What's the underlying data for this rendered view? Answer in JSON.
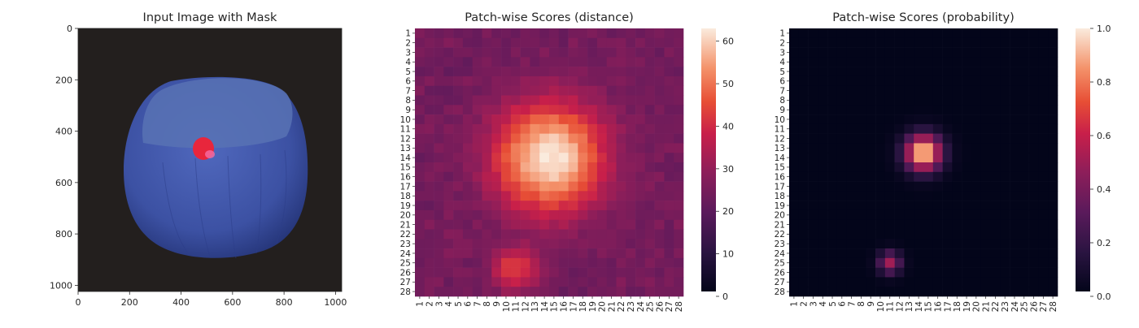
{
  "chart_data": [
    {
      "type": "image",
      "title": "Input Image with Mask",
      "xlim": [
        0,
        1024
      ],
      "ylim": [
        1024,
        0
      ],
      "xticks": [
        "0",
        "200",
        "400",
        "600",
        "800",
        "1000"
      ],
      "yticks": [
        "0",
        "200",
        "400",
        "600",
        "800",
        "1000"
      ],
      "object": "hazelnut",
      "mask_color": "#e8263c",
      "object_color": "#3f54a8",
      "background_color": "#231f1e"
    },
    {
      "type": "heatmap",
      "title": "Patch-wise Scores (distance)",
      "rows": 28,
      "cols": 28,
      "xticks": [
        "1",
        "2",
        "3",
        "4",
        "5",
        "6",
        "7",
        "8",
        "9",
        "10",
        "11",
        "12",
        "13",
        "14",
        "15",
        "16",
        "17",
        "18",
        "19",
        "20",
        "21",
        "22",
        "23",
        "24",
        "25",
        "26",
        "27",
        "28"
      ],
      "yticks": [
        "1",
        "2",
        "3",
        "4",
        "5",
        "6",
        "7",
        "8",
        "9",
        "10",
        "11",
        "12",
        "13",
        "14",
        "15",
        "16",
        "17",
        "18",
        "19",
        "20",
        "21",
        "22",
        "23",
        "24",
        "25",
        "26",
        "27",
        "28"
      ],
      "vmin": 0,
      "vmax": 63,
      "colorbar_ticks": [
        "0",
        "10",
        "20",
        "30",
        "40",
        "50",
        "60"
      ],
      "colormap": "rocket",
      "hotspots": [
        {
          "row": 14,
          "col": 14.5,
          "value": 63
        },
        {
          "row": 25.5,
          "col": 11,
          "value": 43
        }
      ],
      "baseline_value": 22
    },
    {
      "type": "heatmap",
      "title": "Patch-wise Scores (probability)",
      "rows": 28,
      "cols": 28,
      "xticks": [
        "1",
        "2",
        "3",
        "4",
        "5",
        "6",
        "7",
        "8",
        "9",
        "10",
        "11",
        "12",
        "13",
        "14",
        "15",
        "16",
        "17",
        "18",
        "19",
        "20",
        "21",
        "22",
        "23",
        "24",
        "25",
        "26",
        "27",
        "28"
      ],
      "yticks": [
        "1",
        "2",
        "3",
        "4",
        "5",
        "6",
        "7",
        "8",
        "9",
        "10",
        "11",
        "12",
        "13",
        "14",
        "15",
        "16",
        "17",
        "18",
        "19",
        "20",
        "21",
        "22",
        "23",
        "24",
        "25",
        "26",
        "27",
        "28"
      ],
      "vmin": 0.0,
      "vmax": 1.0,
      "colorbar_ticks": [
        "0.0",
        "0.2",
        "0.4",
        "0.6",
        "0.8",
        "1.0"
      ],
      "colormap": "rocket",
      "hotspots": [
        {
          "row": 13.5,
          "col": 14.5,
          "value": 1.0
        },
        {
          "row": 25,
          "col": 11,
          "value": 0.5
        }
      ],
      "baseline_value": 0.0
    }
  ]
}
